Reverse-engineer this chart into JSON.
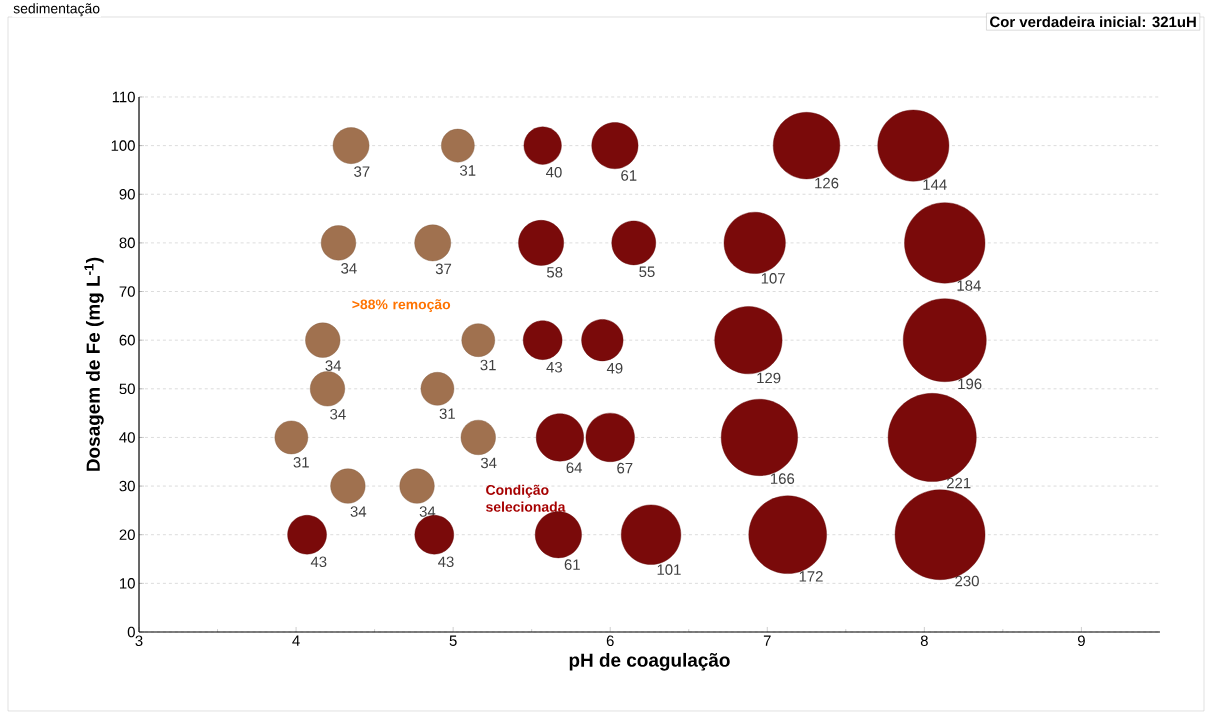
{
  "chart_data": {
    "type": "bubble",
    "title": "Cor verdadeira inicial: 321uH",
    "xlabel": "pH de coagulação",
    "ylabel": "Dosagem de Fe (mg L$^{-1}$)",
    "x": [
      4.35,
      5.03,
      5.57,
      6.03,
      7.25,
      7.93,
      4.27,
      4.87,
      5.56,
      6.15,
      6.92,
      8.13,
      4.17,
      5.16,
      5.57,
      5.95,
      6.88,
      8.13,
      4.2,
      4.9,
      3.97,
      5.16,
      5.68,
      6.0,
      6.95,
      8.05,
      4.33,
      4.77,
      4.07,
      4.88,
      5.67,
      6.26,
      7.13,
      8.1
    ],
    "values": [
      100,
      100,
      100,
      100,
      100,
      100,
      80,
      80,
      80,
      80,
      80,
      80,
      60,
      60,
      60,
      60,
      60,
      60,
      50,
      50,
      40,
      40,
      40,
      40,
      40,
      40,
      30,
      30,
      20,
      20,
      20,
      20,
      20,
      20
    ],
    "sizes": [
      37,
      31,
      40,
      61,
      126,
      144,
      34,
      37,
      58,
      55,
      107,
      184,
      34,
      31,
      43,
      49,
      129,
      196,
      34,
      31,
      31,
      34,
      64,
      67,
      166,
      221,
      34,
      34,
      43,
      43,
      61,
      101,
      172,
      230
    ],
    "value_labels": [
      "37",
      "31",
      "40",
      "61",
      "126",
      "144",
      "34",
      "37",
      "58",
      "55",
      "107",
      "184",
      "34",
      "31",
      "43",
      "49",
      "129",
      "196",
      "34",
      "31",
      "31",
      "34",
      "64",
      "67",
      "166",
      "221",
      "34",
      "34",
      "43",
      "43",
      "61",
      "101",
      "172",
      "230"
    ],
    "colors": [
      "#a0714f",
      "#a0714f",
      "#7a0a0a",
      "#7a0a0a",
      "#7a0a0a",
      "#7a0a0a",
      "#a0714f",
      "#a0714f",
      "#7a0a0a",
      "#7a0a0a",
      "#7a0a0a",
      "#7a0a0a",
      "#a0714f",
      "#a0714f",
      "#7a0a0a",
      "#7a0a0a",
      "#7a0a0a",
      "#7a0a0a",
      "#a0714f",
      "#a0714f",
      "#a0714f",
      "#a0714f",
      "#7a0a0a",
      "#7a0a0a",
      "#7a0a0a",
      "#7a0a0a",
      "#a0714f",
      "#a0714f",
      "#7a0a0a",
      "#7a0a0a",
      "#7a0a0a",
      "#7a0a0a",
      "#7a0a0a",
      "#7a0a0a"
    ],
    "xlim": [
      3,
      9.5
    ],
    "xticks": [
      3,
      4,
      5,
      6,
      7,
      8,
      9
    ],
    "ylim": [
      0,
      110
    ],
    "yticks": [
      0,
      10,
      20,
      30,
      40,
      50,
      60,
      70,
      80,
      90,
      100,
      110
    ],
    "grid": "y",
    "annotations": [
      ">88% remoção",
      "Condição selecionada",
      "sedimentação"
    ]
  }
}
